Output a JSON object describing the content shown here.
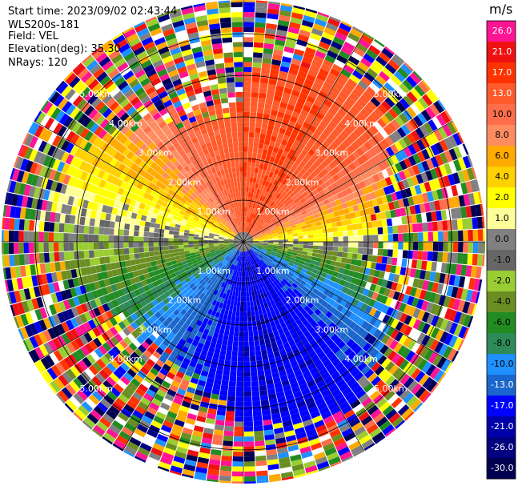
{
  "header": {
    "start_time": "Start time: 2023/09/02 02:43:44",
    "instrument": "WLS200s-181",
    "field": "Field: VEL",
    "elevation": "Elevation(deg): 35.30",
    "nrays": "NRays: 120"
  },
  "colorbar": {
    "unit": "m/s",
    "ticks": [
      "26.0",
      "21.0",
      "17.0",
      "13.0",
      "10.0",
      "8.0",
      "6.0",
      "4.0",
      "2.0",
      "1.0",
      "0.0",
      "-1.0",
      "-2.0",
      "-4.0",
      "-6.0",
      "-8.0",
      "-10.0",
      "-13.0",
      "-17.0",
      "-21.0",
      "-26.0",
      "-30.0"
    ],
    "colors": [
      "#ff1493",
      "#ee1111",
      "#ff3300",
      "#ff5a2a",
      "#ff6e4a",
      "#ff8c60",
      "#ffaa00",
      "#ffd100",
      "#ffff00",
      "#ffff99",
      "#808080",
      "#666666",
      "#9acd32",
      "#6b8e23",
      "#228b22",
      "#2e8b57",
      "#1e90ff",
      "#1a66cc",
      "#0000ff",
      "#0000aa",
      "#000080",
      "#000050"
    ]
  },
  "chart_data": {
    "type": "ppi_radar",
    "field": "VEL",
    "n_rays": 120,
    "elevation_deg": 35.3,
    "range_rings_km": [
      1,
      2,
      3,
      4,
      5
    ],
    "range_labels": [
      "1.00km",
      "2.00km",
      "3.00km",
      "4.00km",
      "5.00km"
    ],
    "max_range_km": 5.8,
    "velocity_range": [
      -30,
      30
    ]
  }
}
